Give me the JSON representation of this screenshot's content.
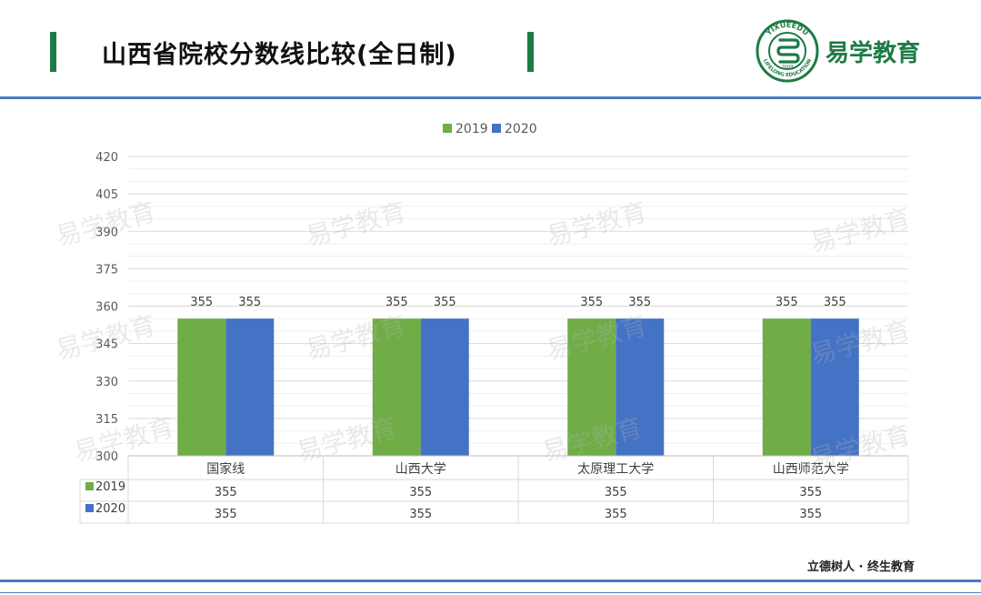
{
  "header": {
    "title": "山西省院校分数线比较(全日制)",
    "logo_text": "易学教育",
    "logo_ring_top": "YIXUEEDU",
    "logo_ring_bottom": "LIFELONG EDUCATION",
    "logo_year": "2009"
  },
  "watermark_text": "易学教育",
  "footer": {
    "slogan": "立德树人 · 终生教育"
  },
  "colors": {
    "accent_green": "#1e7b45",
    "series_2019": "#70ad47",
    "series_2020": "#4472c4",
    "rule_blue": "#4a79c8"
  },
  "chart_data": {
    "type": "bar",
    "categories": [
      "国家线",
      "山西大学",
      "太原理工大学",
      "山西师范大学"
    ],
    "series": [
      {
        "name": "2019",
        "values": [
          355,
          355,
          355,
          355
        ]
      },
      {
        "name": "2020",
        "values": [
          355,
          355,
          355,
          355
        ]
      }
    ],
    "yticks": [
      300,
      315,
      330,
      345,
      360,
      375,
      390,
      405,
      420
    ],
    "ylim": [
      300,
      420
    ],
    "legend": "top-center",
    "data_table": true,
    "grid": true
  }
}
